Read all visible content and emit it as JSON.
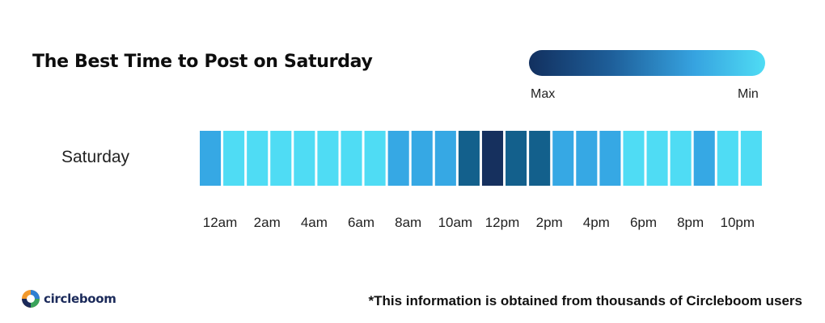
{
  "chart_data": {
    "type": "heatmap",
    "title": "The Best Time to Post on Saturday",
    "rows": [
      "Saturday"
    ],
    "hours": [
      "12am",
      "1am",
      "2am",
      "3am",
      "4am",
      "5am",
      "6am",
      "7am",
      "8am",
      "9am",
      "10am",
      "11am",
      "12pm",
      "1pm",
      "2pm",
      "3pm",
      "4pm",
      "5pm",
      "6pm",
      "7pm",
      "8pm",
      "9pm",
      "10pm",
      "11pm"
    ],
    "tick_labels": [
      "12am",
      "2am",
      "4am",
      "6am",
      "8am",
      "10am",
      "12pm",
      "2pm",
      "4pm",
      "6pm",
      "8pm",
      "10pm"
    ],
    "values": [
      2,
      1,
      1,
      1,
      1,
      1,
      1,
      1,
      2,
      2,
      2,
      4,
      5,
      4,
      4,
      2,
      2,
      2,
      1,
      1,
      1,
      2,
      1,
      1
    ],
    "levels": {
      "1": "#4fdcf4",
      "2": "#36a8e4",
      "4": "#13608c",
      "5": "#16305e"
    },
    "legend": {
      "max_label": "Max",
      "min_label": "Min"
    }
  },
  "footer": {
    "note": "*This information is obtained from thousands of Circleboom users",
    "brand": "circleboom"
  }
}
